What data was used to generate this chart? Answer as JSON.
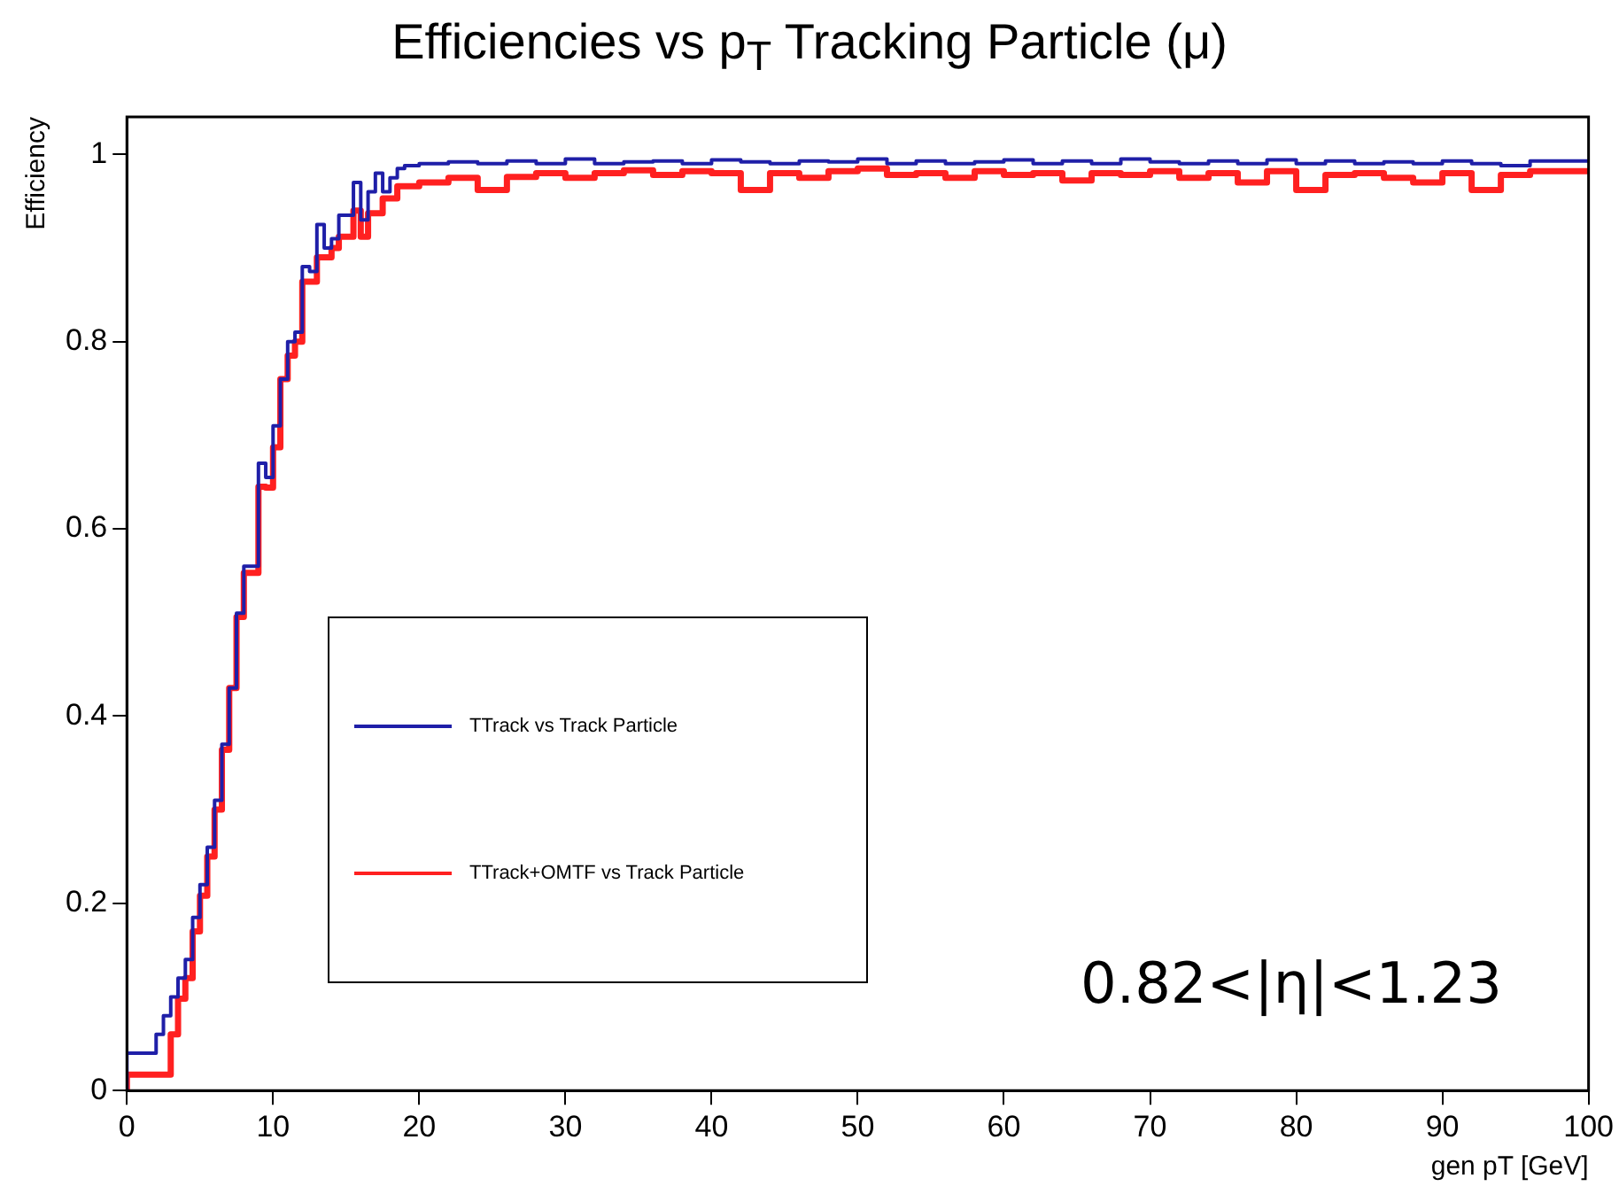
{
  "chart_data": {
    "type": "step",
    "title": "Efficiencies vs p$_{T}$ Tracking Particle (μ)",
    "xlabel": "gen pT [GeV]",
    "ylabel": "Efficiency",
    "xlim": [
      0,
      100
    ],
    "xticks": [
      0,
      10,
      20,
      30,
      40,
      50,
      60,
      70,
      80,
      90,
      100
    ],
    "ylim": [
      0,
      1.04
    ],
    "yticks": [
      0,
      0.2,
      0.4,
      0.6,
      0.8,
      1
    ],
    "grid": false,
    "legend": "bottom left",
    "annotations": [
      "0.82<|η|<1.23"
    ],
    "series": [
      {
        "name": "TTrack vs Track Particle",
        "color": "#1f1fa8",
        "x": [
          0,
          2,
          2.5,
          3,
          3.5,
          4,
          4.5,
          5,
          5.5,
          6,
          6.5,
          7,
          7.5,
          8,
          8.5,
          9,
          9.5,
          10,
          10.5,
          11,
          11.5,
          12,
          12.5,
          13,
          13.5,
          14,
          14.5,
          15,
          15.5,
          16,
          16.5,
          17,
          17.5,
          18,
          18.5,
          19,
          20,
          22,
          24,
          26,
          28,
          30,
          32,
          34,
          36,
          38,
          40,
          42,
          44,
          46,
          48,
          50,
          52,
          54,
          56,
          58,
          60,
          62,
          64,
          66,
          68,
          70,
          72,
          74,
          76,
          78,
          80,
          82,
          84,
          86,
          88,
          90,
          92,
          94,
          96,
          98,
          100
        ],
        "values": [
          0,
          0.04,
          0.06,
          0.08,
          0.1,
          0.12,
          0.14,
          0.185,
          0.22,
          0.26,
          0.31,
          0.37,
          0.43,
          0.51,
          0.56,
          0.56,
          0.67,
          0.655,
          0.71,
          0.76,
          0.8,
          0.81,
          0.88,
          0.875,
          0.925,
          0.9,
          0.91,
          0.935,
          0.935,
          0.97,
          0.93,
          0.96,
          0.98,
          0.96,
          0.975,
          0.985,
          0.988,
          0.99,
          0.992,
          0.99,
          0.993,
          0.99,
          0.995,
          0.99,
          0.992,
          0.993,
          0.99,
          0.994,
          0.992,
          0.99,
          0.993,
          0.992,
          0.995,
          0.99,
          0.993,
          0.99,
          0.992,
          0.994,
          0.99,
          0.993,
          0.99,
          0.995,
          0.992,
          0.99,
          0.993,
          0.99,
          0.994,
          0.99,
          0.993,
          0.99,
          0.992,
          0.99,
          0.993,
          0.99,
          0.988,
          0.993,
          0.993
        ]
      },
      {
        "name": "TTrack+OMTF vs Track Particle",
        "color": "#ff2020",
        "x": [
          0,
          3,
          3.5,
          4,
          4.5,
          5,
          5.5,
          6,
          6.5,
          7,
          7.5,
          8,
          8.5,
          9,
          9.5,
          10,
          10.5,
          11,
          11.5,
          12,
          12.5,
          13,
          13.5,
          14,
          14.5,
          15,
          15.5,
          16,
          16.5,
          17,
          17.5,
          18,
          18.5,
          19,
          20,
          22,
          24,
          26,
          28,
          30,
          32,
          34,
          36,
          38,
          40,
          42,
          44,
          46,
          48,
          50,
          52,
          54,
          56,
          58,
          60,
          62,
          64,
          66,
          68,
          70,
          72,
          74,
          76,
          78,
          80,
          82,
          84,
          86,
          88,
          90,
          92,
          94,
          96,
          98,
          100
        ],
        "values": [
          0,
          0.017,
          0.06,
          0.098,
          0.12,
          0.17,
          0.208,
          0.25,
          0.3,
          0.364,
          0.43,
          0.506,
          0.553,
          0.553,
          0.645,
          0.644,
          0.687,
          0.76,
          0.785,
          0.8,
          0.864,
          0.864,
          0.89,
          0.89,
          0.9,
          0.912,
          0.912,
          0.94,
          0.912,
          0.937,
          0.937,
          0.953,
          0.953,
          0.966,
          0.966,
          0.97,
          0.975,
          0.962,
          0.976,
          0.98,
          0.975,
          0.98,
          0.983,
          0.978,
          0.982,
          0.98,
          0.962,
          0.98,
          0.975,
          0.982,
          0.985,
          0.978,
          0.98,
          0.975,
          0.982,
          0.978,
          0.98,
          0.972,
          0.98,
          0.978,
          0.982,
          0.975,
          0.98,
          0.97,
          0.982,
          0.962,
          0.978,
          0.98,
          0.975,
          0.97,
          0.98,
          0.962,
          0.978,
          0.982,
          0.982
        ]
      }
    ]
  }
}
